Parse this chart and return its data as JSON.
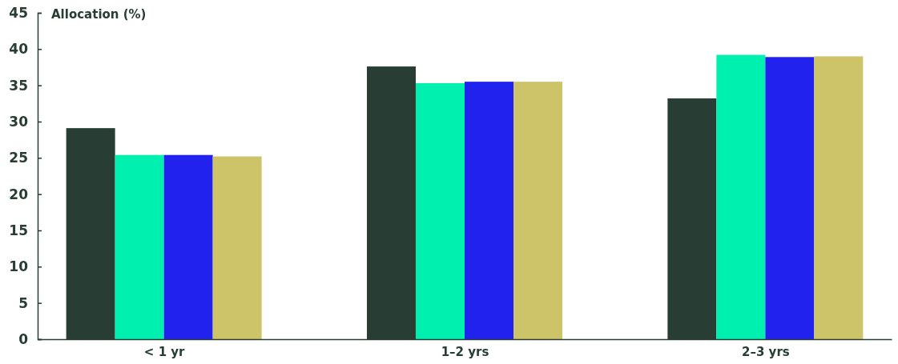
{
  "chart_data": {
    "type": "bar",
    "ylabel": "Allocation (%)",
    "categories": [
      "< 1 yr",
      "1–2 yrs",
      "2–3 yrs"
    ],
    "series": [
      {
        "color": "#283d33",
        "values": [
          29.1,
          37.6,
          33.2
        ]
      },
      {
        "color": "#00f0b0",
        "values": [
          25.4,
          35.3,
          39.2
        ]
      },
      {
        "color": "#2222ee",
        "values": [
          25.4,
          35.5,
          38.9
        ]
      },
      {
        "color": "#cdc46a",
        "values": [
          25.2,
          35.5,
          39.0
        ]
      }
    ],
    "ylim": [
      0,
      45
    ],
    "yticks": [
      0,
      5,
      10,
      15,
      20,
      25,
      30,
      35,
      40,
      45
    ],
    "grid": false
  }
}
